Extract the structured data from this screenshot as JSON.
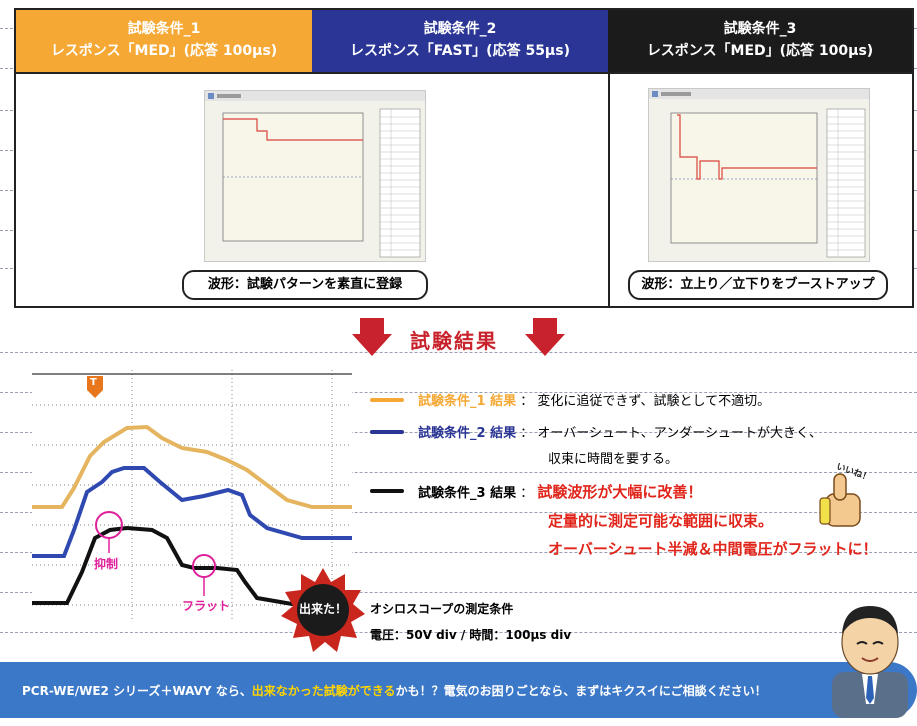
{
  "conditions": [
    {
      "title": "試験条件_1",
      "detail": "レスポンス「MED」(応答 100μs)",
      "color": "#f5a834"
    },
    {
      "title": "試験条件_2",
      "detail": "レスポンス「FAST」(応答 55μs)",
      "color": "#2a3595"
    },
    {
      "title": "試験条件_3",
      "detail": "レスポンス「MED」(応答 100μs)",
      "color": "#1b1b1b"
    }
  ],
  "captions": {
    "left": "波形：試験パターンを素直に登録",
    "right": "波形：立上り／立下りをブーストアップ"
  },
  "result_title": "試験結果",
  "results": [
    {
      "name": "試験条件_1 結果",
      "sep": "：",
      "text": "変化に追従できず、試験として不適切。",
      "color": "#f5a834"
    },
    {
      "name": "試験条件_2 結果",
      "sep": "：",
      "text": "オーバーシュート、アンダーシュートが大きく、",
      "text2": "収束に時間を要する。",
      "color": "#2a3595"
    },
    {
      "name": "試験条件_3 結果",
      "sep": "：",
      "text": "試験波形が大幅に改善！",
      "text2": "定量的に測定可能な範囲に収束。",
      "text3": "オーバーシュート半減＆中間電圧がフラットに！",
      "color": "#1b1b1b"
    }
  ],
  "scope": {
    "trigger_label": "T",
    "label_suppress": "抑制",
    "label_flat": "フラット",
    "burst": "出来た！"
  },
  "measure": {
    "title": "オシロスコープの測定条件",
    "value": "電圧：50V div / 時間：100μs div"
  },
  "banner": {
    "part1": "PCR-WE/WE2 シリーズ＋WAVY なら、",
    "highlight": "出来なかった試験ができる",
    "part2": "かも！？電気のお困りごとなら、まずはキクスイにご相談ください！"
  },
  "thumb_text": "いいね！"
}
